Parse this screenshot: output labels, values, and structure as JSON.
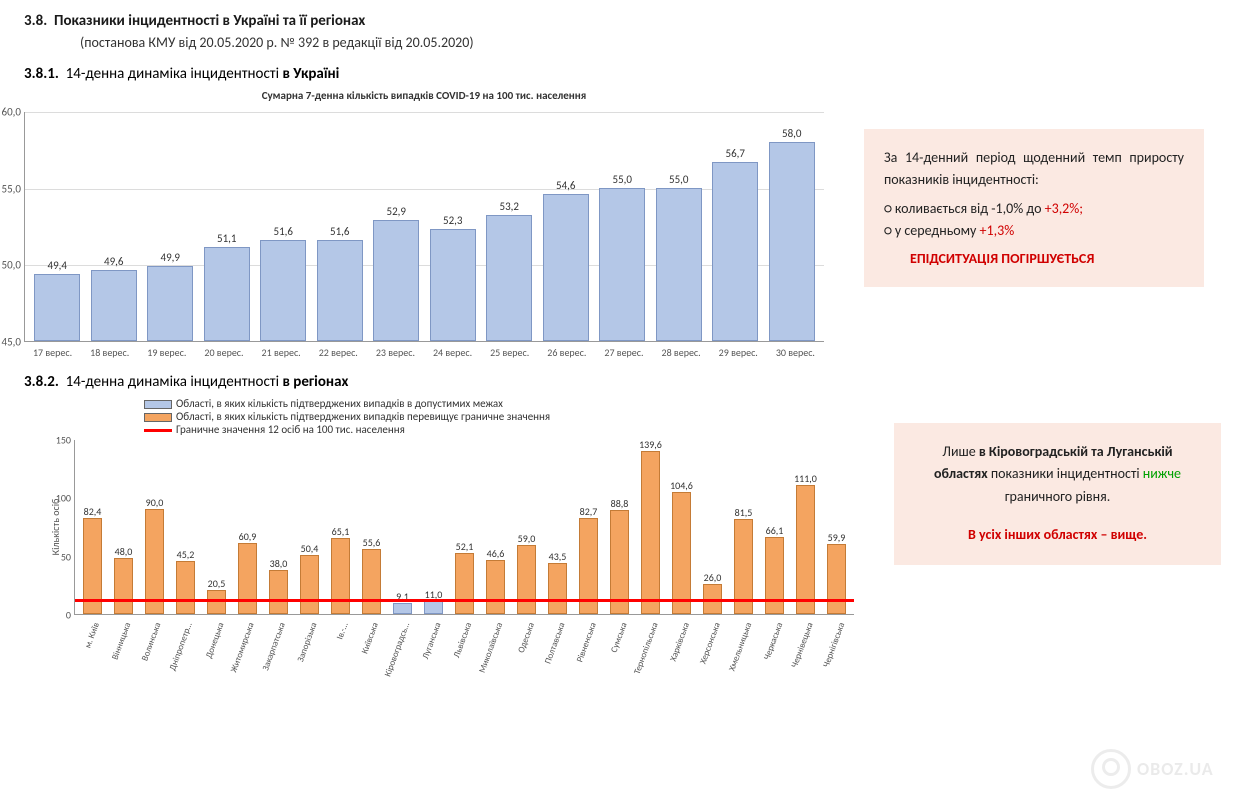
{
  "headings": {
    "sec_num": "3.8.",
    "sec_title": "Показники інцидентності в Україні та її регіонах",
    "sec_sub": "(постанова КМУ від 20.05.2020 р. № 392 в редакції від 20.05.2020)",
    "s1_num": "3.8.1.",
    "s1_rest": "14-денна динаміка інцидентності ",
    "s1_bold": "в Україні",
    "s2_num": "3.8.2.",
    "s2_rest": "14-денна динаміка інцидентності ",
    "s2_bold": "в регіонах"
  },
  "chart1": {
    "type": "bar",
    "title": "Сумарна 7-денна кількість випадків COVID-19 на 100 тис. населення",
    "categories": [
      "17 верес.",
      "18 верес.",
      "19 верес.",
      "20 верес.",
      "21 верес.",
      "22 верес.",
      "23 верес.",
      "24 верес.",
      "25 верес.",
      "26 верес.",
      "27 верес.",
      "28 верес.",
      "29 верес.",
      "30 верес."
    ],
    "values": [
      49.4,
      49.6,
      49.9,
      51.1,
      51.6,
      51.6,
      52.9,
      52.3,
      53.2,
      54.6,
      55.0,
      55.0,
      56.7,
      58.0
    ],
    "value_labels": [
      "49,4",
      "49,6",
      "49,9",
      "51,1",
      "51,6",
      "51,6",
      "52,9",
      "52,3",
      "53,2",
      "54,6",
      "55,0",
      "55,0",
      "56,7",
      "58,0"
    ],
    "ylim": [
      45.0,
      60.0
    ],
    "yticks": [
      45.0,
      50.0,
      55.0,
      60.0
    ],
    "ytick_labels": [
      "45,0",
      "50,0",
      "55,0",
      "60,0"
    ],
    "bar_fill": "#b4c7e7",
    "bar_border": "#7f97c4",
    "grid_color": "#dcdcdc",
    "background": "#ffffff",
    "font_size_title": 11,
    "font_size_labels": 11
  },
  "info1": {
    "intro": "За 14-денний період щоденний темп приросту показників інцидентності:",
    "li1_pre": "коливається від -1,0% до ",
    "li1_red": "+3,2%;",
    "li2_pre": "у середньому ",
    "li2_red": "+1,3%",
    "alert": "ЕПІДСИТУАЦІЯ ПОГІРШУЄТЬСЯ"
  },
  "chart2": {
    "type": "bar",
    "ylabel": "Кількість осіб",
    "legend": {
      "ok": "Області, в яких кількість підтверджених випадків в допустимих межах",
      "over": "Області, в яких кількість підтверджених випадків перевищує граничне значення",
      "line": "Граничне значення 12 осіб на 100 тис. населення"
    },
    "categories": [
      "м. Київ",
      "Вінницька",
      "Волинська",
      "Дніпропетр…",
      "Донецька",
      "Житомирська",
      "Закарпатська",
      "Запорізька",
      "Ів.-…",
      "Київська",
      "Кіровоградсь…",
      "Луганська",
      "Львівська",
      "Миколаївська",
      "Одеська",
      "Полтавська",
      "Рівненська",
      "Сумська",
      "Тернопільська",
      "Харківська",
      "Херсонська",
      "Хмельницька",
      "Черкаська",
      "Чернівецька",
      "Чернігівська"
    ],
    "values": [
      82.4,
      48.0,
      90.0,
      45.2,
      20.5,
      60.9,
      38.0,
      50.4,
      65.1,
      55.6,
      9.1,
      11.0,
      52.1,
      46.6,
      59.0,
      43.5,
      82.7,
      88.8,
      139.6,
      104.6,
      26.0,
      81.5,
      66.1,
      111.0,
      59.9
    ],
    "value_labels": [
      "82,4",
      "48,0",
      "90,0",
      "45,2",
      "20,5",
      "60,9",
      "38,0",
      "50,4",
      "65,1",
      "55,6",
      "9,1",
      "11,0",
      "52,1",
      "46,6",
      "59,0",
      "43,5",
      "82,7",
      "88,8",
      "139,6",
      "104,6",
      "26,0",
      "81,5",
      "66,1",
      "111,0",
      "59,9"
    ],
    "series_color_key": [
      "over",
      "over",
      "over",
      "over",
      "over",
      "over",
      "over",
      "over",
      "over",
      "over",
      "ok",
      "ok",
      "over",
      "over",
      "over",
      "over",
      "over",
      "over",
      "over",
      "over",
      "over",
      "over",
      "over",
      "over",
      "over"
    ],
    "colors": {
      "ok": "#b4c7e7",
      "over": "#f4a460",
      "ok_border": "#7f97c4",
      "over_border": "#c47b36"
    },
    "threshold": 12,
    "threshold_color": "#ff0000",
    "ylim": [
      0,
      150
    ],
    "yticks": [
      0,
      50,
      100,
      150
    ],
    "ytick_labels": [
      "0",
      "50",
      "100",
      "150"
    ],
    "background": "#ffffff"
  },
  "info2": {
    "line1_pre": "Лише ",
    "line1_bold": "в Кіровоградській та Луганській областях",
    "line1_post": " показники інцидентності ",
    "line1_green": "нижче",
    "line1_end": " граничного рівня.",
    "line2": "В усіх інших областях – вище."
  },
  "watermark": "OBOZ.UA"
}
